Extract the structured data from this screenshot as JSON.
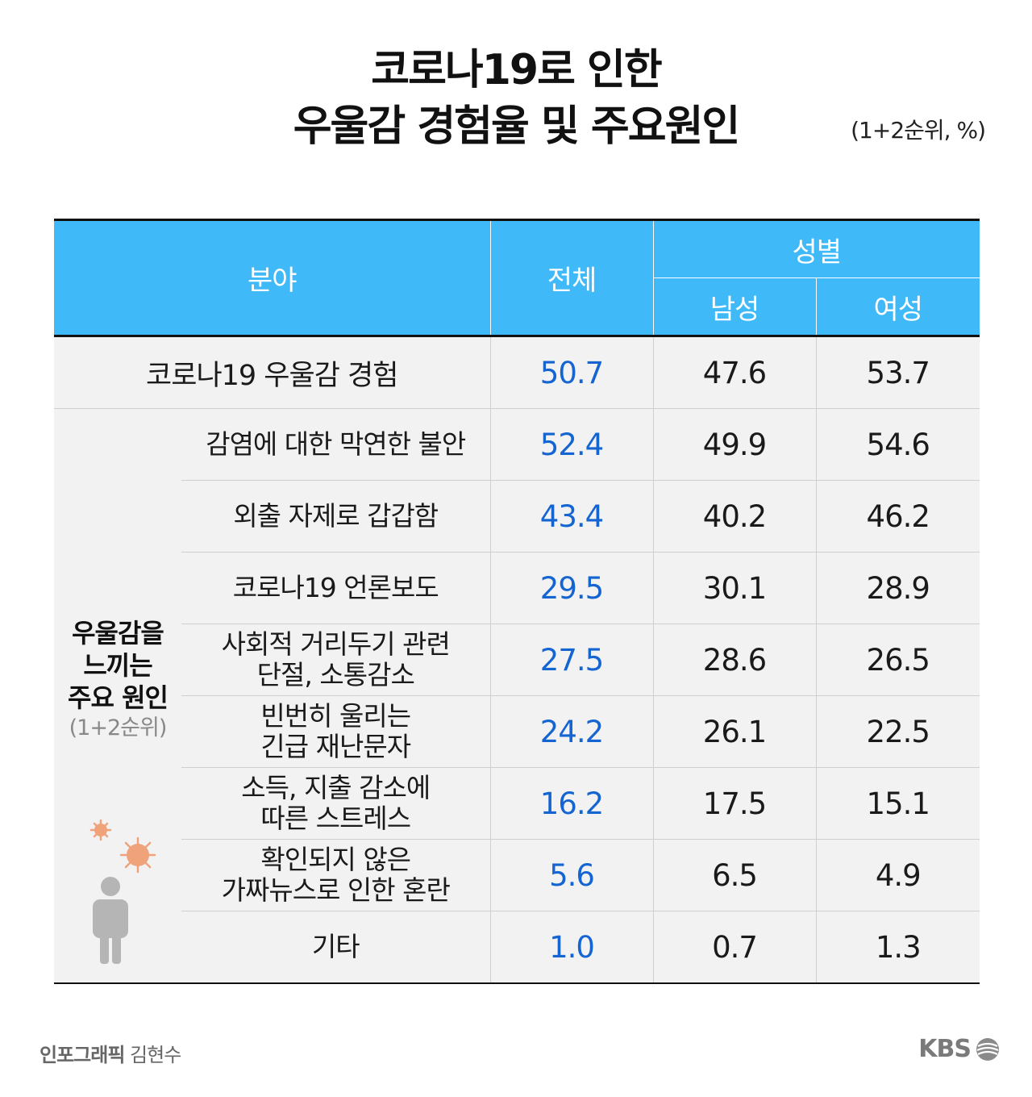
{
  "title": {
    "line1": "코로나19로 인한",
    "line2": "우울감 경험율 및 주요원인",
    "unit": "(1+2순위, %)"
  },
  "chart_data": {
    "type": "table",
    "header": {
      "field": "분야",
      "total": "전체",
      "gender_group": "성별",
      "male": "남성",
      "female": "여성"
    },
    "experience_row": {
      "label": "코로나19 우울감 경험",
      "total": "50.7",
      "male": "47.6",
      "female": "53.7"
    },
    "group_label": {
      "title": "우울감을 느끼는 주요 원인",
      "line1": "우울감을",
      "line2": "느끼는",
      "line3": "주요 원인",
      "sub": "(1+2순위)"
    },
    "rows": [
      {
        "label1": "감염에 대한 막연한 불안",
        "label2": "",
        "total": "52.4",
        "male": "49.9",
        "female": "54.6"
      },
      {
        "label1": "외출 자제로 갑갑함",
        "label2": "",
        "total": "43.4",
        "male": "40.2",
        "female": "46.2"
      },
      {
        "label1": "코로나19 언론보도",
        "label2": "",
        "total": "29.5",
        "male": "30.1",
        "female": "28.9"
      },
      {
        "label1": "사회적 거리두기 관련",
        "label2": "단절, 소통감소",
        "total": "27.5",
        "male": "28.6",
        "female": "26.5"
      },
      {
        "label1": "빈번히 울리는",
        "label2": "긴급 재난문자",
        "total": "24.2",
        "male": "26.1",
        "female": "22.5"
      },
      {
        "label1": "소득, 지출 감소에",
        "label2": "따른 스트레스",
        "total": "16.2",
        "male": "17.5",
        "female": "15.1"
      },
      {
        "label1": "확인되지 않은",
        "label2": "가짜뉴스로 인한 혼란",
        "total": "5.6",
        "male": "6.5",
        "female": "4.9"
      },
      {
        "label1": "기타",
        "label2": "",
        "total": "1.0",
        "male": "0.7",
        "female": "1.3"
      }
    ]
  },
  "footer": {
    "credit_role": "인포그래픽",
    "credit_name": "김현수",
    "logo": "KBS"
  },
  "colors": {
    "header_bg": "#3fb9f8",
    "total_text": "#1464d2",
    "row_bg": "#f2f2f2",
    "virus": "#f0a37a",
    "person": "#b5b5b5"
  }
}
